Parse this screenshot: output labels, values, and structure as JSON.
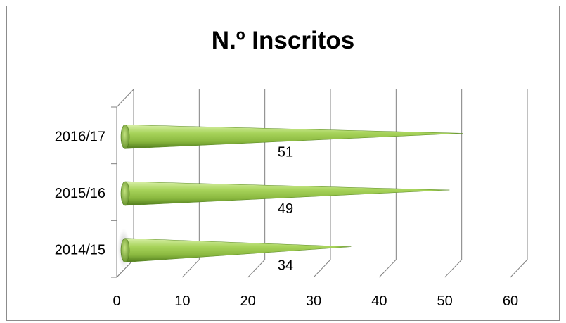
{
  "chart_data": {
    "type": "bar",
    "orientation": "horizontal",
    "style": "3d-cone",
    "title": "N.º Inscritos",
    "categories": [
      "2014/15",
      "2015/16",
      "2016/17"
    ],
    "values": [
      34,
      49,
      51
    ],
    "data_labels": [
      "34",
      "49",
      "51"
    ],
    "x_ticks": [
      "0",
      "10",
      "20",
      "30",
      "40",
      "50",
      "60"
    ],
    "xlim": [
      0,
      60
    ],
    "grid": true,
    "legend": "none",
    "bar_color": "#92c045",
    "bar_dark_color": "#4f7a1c",
    "bar_light_color": "#d9f0a8"
  }
}
